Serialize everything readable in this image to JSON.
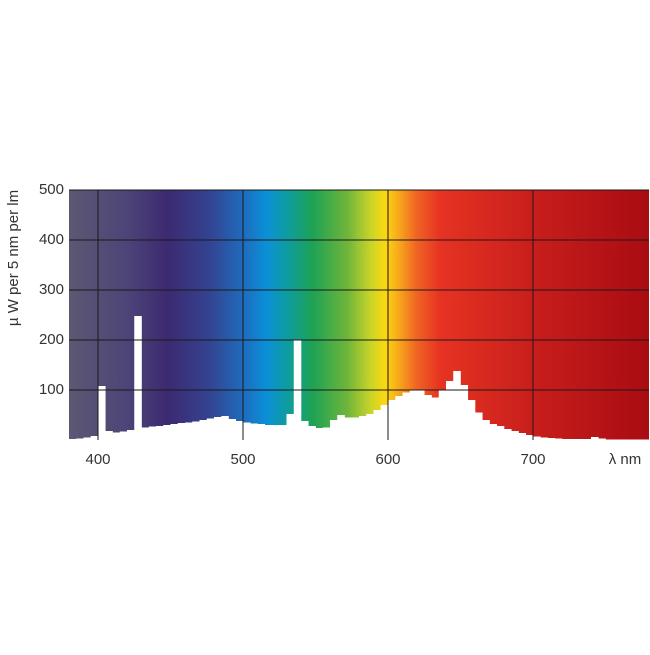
{
  "chart_data": {
    "type": "histogram",
    "x_label": "λ nm",
    "y_label": "µ W per 5 nm per lm",
    "bins": [
      380,
      385,
      390,
      395,
      400,
      405,
      410,
      415,
      420,
      425,
      430,
      435,
      440,
      445,
      450,
      455,
      460,
      465,
      470,
      475,
      480,
      485,
      490,
      495,
      500,
      505,
      510,
      515,
      520,
      525,
      530,
      535,
      540,
      545,
      550,
      555,
      560,
      565,
      570,
      575,
      580,
      585,
      590,
      595,
      600,
      605,
      610,
      615,
      620,
      625,
      630,
      635,
      640,
      645,
      650,
      655,
      660,
      665,
      670,
      675,
      680,
      685,
      690,
      695,
      700,
      705,
      710,
      715,
      720,
      725,
      730,
      735,
      740,
      745,
      750,
      755,
      760,
      765,
      770,
      775,
      780
    ],
    "values": [
      2,
      3,
      5,
      8,
      108,
      18,
      15,
      17,
      20,
      248,
      25,
      27,
      28,
      30,
      32,
      34,
      35,
      37,
      40,
      43,
      46,
      48,
      42,
      38,
      35,
      33,
      32,
      30,
      30,
      30,
      52,
      200,
      38,
      28,
      24,
      25,
      40,
      50,
      45,
      45,
      48,
      52,
      60,
      70,
      80,
      88,
      95,
      100,
      100,
      90,
      85,
      100,
      118,
      138,
      110,
      80,
      55,
      40,
      32,
      28,
      22,
      18,
      14,
      10,
      7,
      5,
      4,
      3,
      2,
      2,
      2,
      2,
      6,
      3,
      1,
      1,
      1,
      1,
      1,
      1
    ],
    "color": "#ffffff",
    "xlim": [
      380,
      780
    ],
    "xticks": [
      400,
      500,
      600,
      700
    ],
    "ylim": [
      0,
      500
    ],
    "yticks": [
      100,
      200,
      300,
      400,
      500
    ],
    "grid": true
  }
}
